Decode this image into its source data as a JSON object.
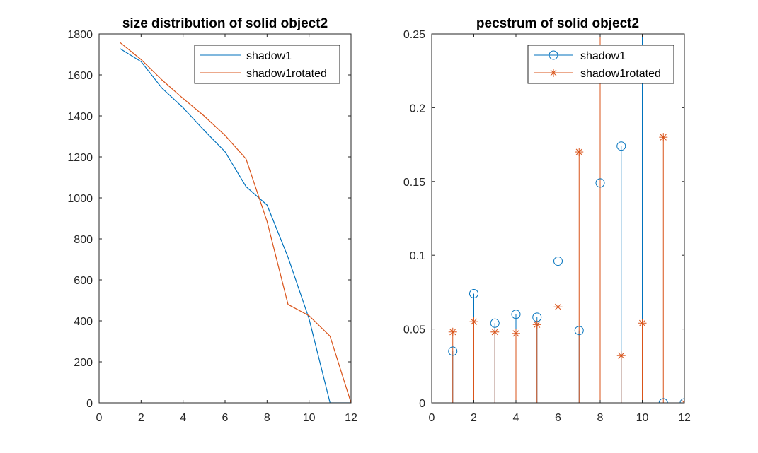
{
  "figure": {
    "colors": {
      "series1": "#0072BD",
      "series2": "#D95319",
      "axis": "#262626"
    }
  },
  "chart_data": [
    {
      "type": "line",
      "title": "size distribution of solid object2",
      "xlabel": "",
      "ylabel": "",
      "xlim": [
        0,
        12
      ],
      "ylim": [
        0,
        1800
      ],
      "xticks": [
        0,
        2,
        4,
        6,
        8,
        10,
        12
      ],
      "yticks": [
        0,
        200,
        400,
        600,
        800,
        1000,
        1200,
        1400,
        1600,
        1800
      ],
      "legend_position": "top-right",
      "grid": false,
      "x": [
        1,
        2,
        3,
        4,
        5,
        6,
        7,
        8,
        9,
        10,
        11,
        12
      ],
      "series": [
        {
          "name": "shadow1",
          "color": "#0072BD",
          "values": [
            1728,
            1665,
            1535,
            1440,
            1330,
            1225,
            1055,
            965,
            710,
            410,
            0,
            0
          ]
        },
        {
          "name": "shadow1rotated",
          "color": "#D95319",
          "values": [
            1758,
            1675,
            1575,
            1485,
            1400,
            1305,
            1190,
            885,
            480,
            425,
            325,
            0
          ]
        }
      ]
    },
    {
      "type": "stem",
      "title": "pecstrum of solid object2",
      "xlabel": "",
      "ylabel": "",
      "xlim": [
        0,
        12
      ],
      "ylim": [
        0,
        0.25
      ],
      "xticks": [
        0,
        2,
        4,
        6,
        8,
        10,
        12
      ],
      "yticks": [
        0,
        0.05,
        0.1,
        0.15,
        0.2,
        0.25
      ],
      "legend_position": "top-right",
      "grid": false,
      "x": [
        1,
        2,
        3,
        4,
        5,
        6,
        7,
        8,
        9,
        10,
        11,
        12
      ],
      "series": [
        {
          "name": "shadow1",
          "color": "#0072BD",
          "marker": "circle",
          "values": [
            0.035,
            0.074,
            0.054,
            0.06,
            0.058,
            0.096,
            0.049,
            0.149,
            0.174,
            0.3,
            0.0,
            0.0
          ]
        },
        {
          "name": "shadow1rotated",
          "color": "#D95319",
          "marker": "asterisk",
          "values": [
            0.048,
            0.055,
            0.048,
            0.047,
            0.053,
            0.065,
            0.17,
            0.3,
            0.032,
            0.054,
            0.18,
            0.0
          ]
        }
      ]
    }
  ]
}
